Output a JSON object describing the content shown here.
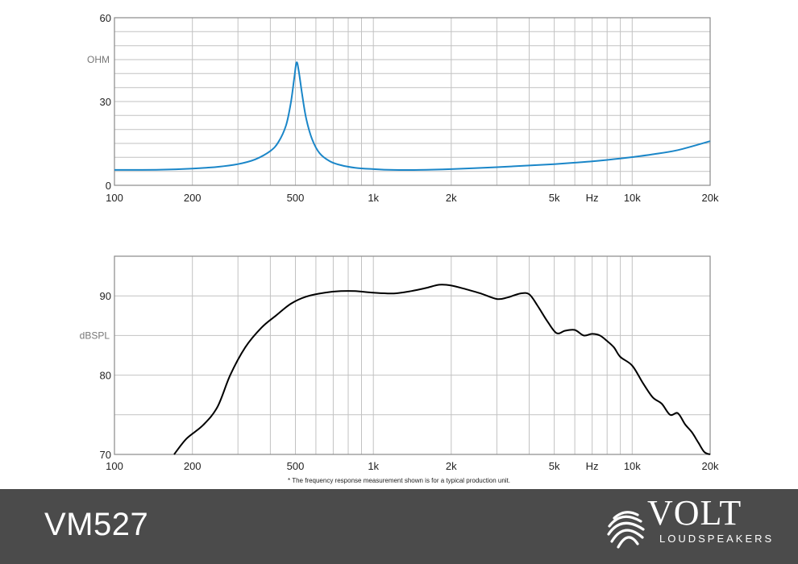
{
  "chart_data": [
    {
      "type": "line",
      "x_scale": "log",
      "xlim": [
        100,
        20000
      ],
      "ylim": [
        0,
        60
      ],
      "ylabel": "OHM",
      "x_tick_labels": [
        {
          "x": 100,
          "label": "100"
        },
        {
          "x": 200,
          "label": "200"
        },
        {
          "x": 500,
          "label": "500"
        },
        {
          "x": 1000,
          "label": "1k"
        },
        {
          "x": 2000,
          "label": "2k"
        },
        {
          "x": 5000,
          "label": "5k"
        },
        {
          "x": 7000,
          "label": "Hz"
        },
        {
          "x": 10000,
          "label": "10k"
        },
        {
          "x": 20000,
          "label": "20k"
        }
      ],
      "y_ticks": [
        0,
        30,
        60
      ],
      "ylabel_at": 45,
      "grid": true,
      "color": "#1a86c8",
      "series": [
        {
          "x": [
            100,
            150,
            200,
            250,
            300,
            350,
            400,
            430,
            460,
            480,
            495,
            505,
            515,
            530,
            550,
            580,
            620,
            680,
            750,
            850,
            1000,
            1200,
            1500,
            2000,
            3000,
            4000,
            5000,
            6000,
            7000,
            8000,
            10000,
            12000,
            15000,
            20000
          ],
          "y": [
            5.5,
            5.6,
            6.0,
            6.6,
            7.6,
            9.3,
            12.3,
            15.5,
            21.5,
            29.5,
            38.5,
            44,
            41,
            33,
            24,
            16.5,
            11.5,
            8.6,
            7.2,
            6.3,
            5.8,
            5.5,
            5.5,
            5.8,
            6.5,
            7.1,
            7.6,
            8.1,
            8.6,
            9.1,
            10.1,
            11.1,
            12.6,
            15.8
          ]
        }
      ]
    },
    {
      "type": "line",
      "x_scale": "log",
      "xlim": [
        100,
        20000
      ],
      "ylim": [
        70,
        95
      ],
      "ylabel": "dBSPL",
      "x_tick_labels": [
        {
          "x": 100,
          "label": "100"
        },
        {
          "x": 200,
          "label": "200"
        },
        {
          "x": 500,
          "label": "500"
        },
        {
          "x": 1000,
          "label": "1k"
        },
        {
          "x": 2000,
          "label": "2k"
        },
        {
          "x": 5000,
          "label": "5k"
        },
        {
          "x": 7000,
          "label": "Hz"
        },
        {
          "x": 10000,
          "label": "10k"
        },
        {
          "x": 20000,
          "label": "20k"
        }
      ],
      "y_ticks": [
        70,
        80,
        90
      ],
      "ylabel_at": 85,
      "grid": true,
      "color": "#000000",
      "series": [
        {
          "x": [
            170,
            190,
            220,
            250,
            280,
            320,
            370,
            420,
            480,
            550,
            650,
            750,
            850,
            1000,
            1200,
            1400,
            1600,
            1800,
            2000,
            2300,
            2600,
            3000,
            3300,
            3700,
            4000,
            4300,
            4700,
            5100,
            5500,
            6000,
            6500,
            7000,
            7500,
            8000,
            8500,
            9000,
            10000,
            11000,
            12000,
            13000,
            14000,
            15000,
            16000,
            17000,
            18000,
            19000,
            20000
          ],
          "y": [
            70.0,
            72.0,
            73.7,
            76.0,
            80.0,
            83.5,
            86.0,
            87.5,
            89.0,
            89.9,
            90.4,
            90.6,
            90.6,
            90.4,
            90.3,
            90.6,
            91.0,
            91.4,
            91.3,
            90.8,
            90.3,
            89.6,
            89.8,
            90.3,
            90.2,
            88.8,
            86.8,
            85.3,
            85.6,
            85.7,
            85.0,
            85.2,
            85.0,
            84.3,
            83.5,
            82.3,
            81.2,
            79.0,
            77.2,
            76.4,
            75.0,
            75.2,
            73.8,
            72.8,
            71.5,
            70.3,
            70.0
          ]
        }
      ]
    }
  ],
  "footnote": "* The frequency response measurement shown is for a typical production unit.",
  "footer": {
    "model": "VM527",
    "brand": "VOLT",
    "brand_sub": "LOUDSPEAKERS",
    "background": "#4b4b4b"
  }
}
